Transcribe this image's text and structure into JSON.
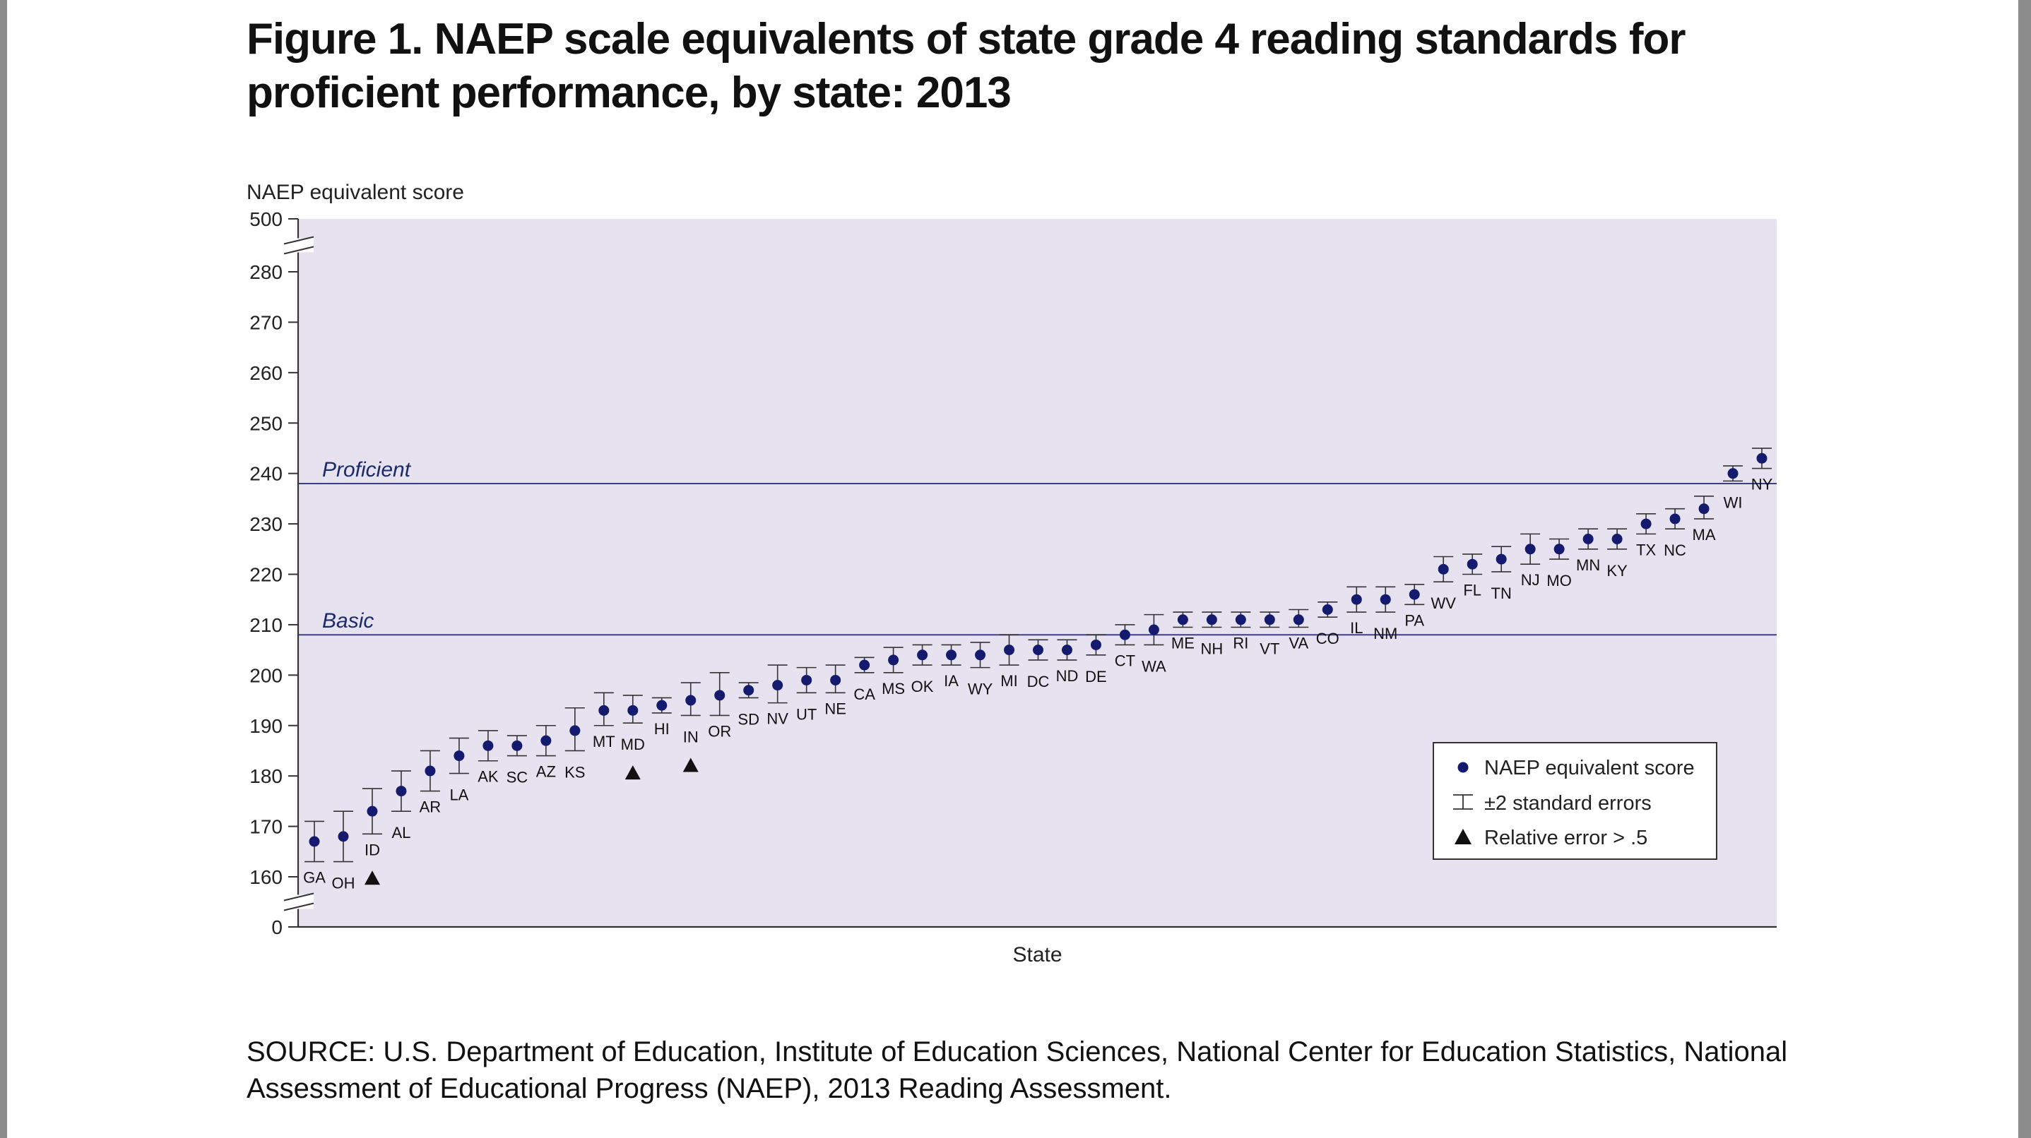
{
  "figure": {
    "title": "Figure 1. NAEP scale equivalents of state grade 4 reading standards for proficient performance, by state: 2013",
    "source": "SOURCE: U.S. Department of Education, Institute of Education Sciences, National Center for Education Statistics, National Assessment of Educational Progress (NAEP), 2013 Reading Assessment."
  },
  "colors": {
    "plot_background": "#e6e2ef",
    "point": "#141a6e",
    "reference_line": "#3a3f86",
    "error_bar": "#333333",
    "triangle": "#111111"
  },
  "chart_data": {
    "type": "scatter",
    "xlabel": "State",
    "ylabel": "NAEP equivalent score",
    "y_ticks": [
      0,
      160,
      170,
      180,
      190,
      200,
      210,
      220,
      230,
      240,
      250,
      260,
      270,
      280,
      500
    ],
    "y_axis_breaks": [
      [
        0,
        160
      ],
      [
        280,
        500
      ]
    ],
    "reference_lines": [
      {
        "label": "Proficient",
        "value": 238
      },
      {
        "label": "Basic",
        "value": 208
      }
    ],
    "legend": {
      "placement": "bottom-right",
      "entries": [
        "NAEP equivalent score",
        "±2 standard errors",
        "Relative error > .5"
      ]
    },
    "points": [
      {
        "state": "GA",
        "score": 167,
        "low": 163,
        "high": 171
      },
      {
        "state": "OH",
        "score": 168,
        "low": 163,
        "high": 173
      },
      {
        "state": "ID",
        "score": 173,
        "low": 168.5,
        "high": 177.5,
        "relative_error_gt_half": true
      },
      {
        "state": "AL",
        "score": 177,
        "low": 173,
        "high": 181
      },
      {
        "state": "AR",
        "score": 181,
        "low": 177,
        "high": 185
      },
      {
        "state": "LA",
        "score": 184,
        "low": 180.5,
        "high": 187.5
      },
      {
        "state": "AK",
        "score": 186,
        "low": 183,
        "high": 189
      },
      {
        "state": "SC",
        "score": 186,
        "low": 184,
        "high": 188
      },
      {
        "state": "AZ",
        "score": 187,
        "low": 184,
        "high": 190
      },
      {
        "state": "KS",
        "score": 189,
        "low": 185,
        "high": 193.5
      },
      {
        "state": "MT",
        "score": 193,
        "low": 190,
        "high": 196.5
      },
      {
        "state": "MD",
        "score": 193,
        "low": 190.5,
        "high": 196,
        "relative_error_gt_half": true
      },
      {
        "state": "HI",
        "score": 194,
        "low": 192.5,
        "high": 195.5
      },
      {
        "state": "IN",
        "score": 195,
        "low": 192,
        "high": 198.5,
        "relative_error_gt_half": true
      },
      {
        "state": "OR",
        "score": 196,
        "low": 192,
        "high": 200.5
      },
      {
        "state": "SD",
        "score": 197,
        "low": 195.5,
        "high": 198.5
      },
      {
        "state": "NV",
        "score": 198,
        "low": 194.5,
        "high": 202
      },
      {
        "state": "UT",
        "score": 199,
        "low": 196.5,
        "high": 201.5
      },
      {
        "state": "NE",
        "score": 199,
        "low": 196.5,
        "high": 202
      },
      {
        "state": "CA",
        "score": 202,
        "low": 200.5,
        "high": 203.5
      },
      {
        "state": "MS",
        "score": 203,
        "low": 200.5,
        "high": 205.5
      },
      {
        "state": "OK",
        "score": 204,
        "low": 202,
        "high": 206
      },
      {
        "state": "IA",
        "score": 204,
        "low": 202,
        "high": 206
      },
      {
        "state": "WY",
        "score": 204,
        "low": 201.5,
        "high": 206.5
      },
      {
        "state": "MI",
        "score": 205,
        "low": 202,
        "high": 208
      },
      {
        "state": "DC",
        "score": 205,
        "low": 203,
        "high": 207
      },
      {
        "state": "ND",
        "score": 205,
        "low": 203,
        "high": 207
      },
      {
        "state": "DE",
        "score": 206,
        "low": 204,
        "high": 208
      },
      {
        "state": "CT",
        "score": 208,
        "low": 206,
        "high": 210
      },
      {
        "state": "WA",
        "score": 209,
        "low": 206,
        "high": 212
      },
      {
        "state": "ME",
        "score": 211,
        "low": 209.5,
        "high": 212.5
      },
      {
        "state": "NH",
        "score": 211,
        "low": 209.5,
        "high": 212.5
      },
      {
        "state": "RI",
        "score": 211,
        "low": 209.5,
        "high": 212.5
      },
      {
        "state": "VT",
        "score": 211,
        "low": 209.5,
        "high": 212.5
      },
      {
        "state": "VA",
        "score": 211,
        "low": 209.5,
        "high": 213
      },
      {
        "state": "CO",
        "score": 213,
        "low": 211.5,
        "high": 214.5
      },
      {
        "state": "IL",
        "score": 215,
        "low": 212.5,
        "high": 217.5
      },
      {
        "state": "NM",
        "score": 215,
        "low": 212.5,
        "high": 217.5
      },
      {
        "state": "PA",
        "score": 216,
        "low": 214,
        "high": 218
      },
      {
        "state": "WV",
        "score": 221,
        "low": 218.5,
        "high": 223.5
      },
      {
        "state": "FL",
        "score": 222,
        "low": 220,
        "high": 224
      },
      {
        "state": "TN",
        "score": 223,
        "low": 220.5,
        "high": 225.5
      },
      {
        "state": "NJ",
        "score": 225,
        "low": 222,
        "high": 228
      },
      {
        "state": "MO",
        "score": 225,
        "low": 223,
        "high": 227
      },
      {
        "state": "MN",
        "score": 227,
        "low": 225,
        "high": 229
      },
      {
        "state": "KY",
        "score": 227,
        "low": 225,
        "high": 229
      },
      {
        "state": "TX",
        "score": 230,
        "low": 228,
        "high": 232
      },
      {
        "state": "NC",
        "score": 231,
        "low": 229,
        "high": 233
      },
      {
        "state": "MA",
        "score": 233,
        "low": 231,
        "high": 235.5
      },
      {
        "state": "WI",
        "score": 240,
        "low": 238.5,
        "high": 241.5
      },
      {
        "state": "NY",
        "score": 243,
        "low": 241,
        "high": 245
      }
    ]
  }
}
